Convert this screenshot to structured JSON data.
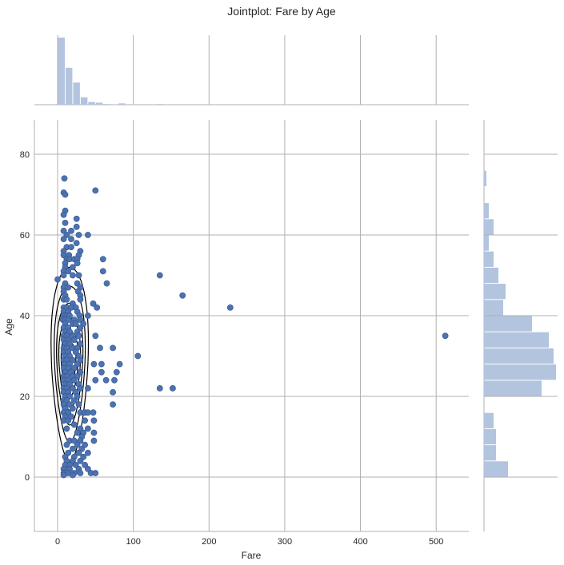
{
  "chart_data": {
    "type": "scatter",
    "title": "Jointplot: Fare by Age",
    "xlabel": "Fare",
    "ylabel": "Age",
    "xlim": [
      -30,
      540
    ],
    "ylim": [
      -13,
      88
    ],
    "xticks": [
      0,
      100,
      200,
      300,
      400,
      500
    ],
    "yticks": [
      0,
      20,
      40,
      60,
      80
    ],
    "grid": true,
    "colors": {
      "points": "#4c72b0",
      "hist": "#b3c4de",
      "contour": "#000000",
      "grid": "#b0b0b0"
    },
    "scatter_points": [
      [
        9,
        74
      ],
      [
        8,
        70.5
      ],
      [
        10,
        70
      ],
      [
        50,
        71
      ],
      [
        10,
        66
      ],
      [
        8,
        65
      ],
      [
        25,
        64
      ],
      [
        10,
        63
      ],
      [
        25,
        62
      ],
      [
        8,
        61
      ],
      [
        18,
        61
      ],
      [
        12,
        60
      ],
      [
        28,
        60
      ],
      [
        40,
        60
      ],
      [
        8,
        59
      ],
      [
        18,
        59
      ],
      [
        25,
        58
      ],
      [
        12,
        57
      ],
      [
        18,
        57
      ],
      [
        8,
        56
      ],
      [
        30,
        56
      ],
      [
        8,
        55
      ],
      [
        15,
        55
      ],
      [
        28,
        55
      ],
      [
        12,
        54
      ],
      [
        16,
        54
      ],
      [
        22,
        54
      ],
      [
        26,
        54
      ],
      [
        60,
        54
      ],
      [
        10,
        53
      ],
      [
        26,
        53
      ],
      [
        10,
        52
      ],
      [
        20,
        52
      ],
      [
        60,
        51
      ],
      [
        8,
        51
      ],
      [
        14,
        51
      ],
      [
        8,
        50
      ],
      [
        20,
        50
      ],
      [
        28,
        50
      ],
      [
        135,
        50
      ],
      [
        0,
        49
      ],
      [
        10,
        48
      ],
      [
        26,
        48
      ],
      [
        65,
        48
      ],
      [
        8,
        47
      ],
      [
        14,
        47
      ],
      [
        30,
        47
      ],
      [
        8,
        46
      ],
      [
        27,
        46
      ],
      [
        10,
        45
      ],
      [
        30,
        45
      ],
      [
        165,
        45
      ],
      [
        8,
        44
      ],
      [
        12,
        44
      ],
      [
        30,
        44
      ],
      [
        20,
        43
      ],
      [
        47,
        43
      ],
      [
        8,
        42
      ],
      [
        12,
        42
      ],
      [
        18,
        42
      ],
      [
        24,
        42
      ],
      [
        52,
        42
      ],
      [
        228,
        42
      ],
      [
        8,
        41
      ],
      [
        14,
        41
      ],
      [
        26,
        41
      ],
      [
        8,
        40
      ],
      [
        12,
        40
      ],
      [
        16,
        40
      ],
      [
        29,
        40
      ],
      [
        40,
        40
      ],
      [
        7,
        39
      ],
      [
        10,
        39
      ],
      [
        14,
        39
      ],
      [
        22,
        39
      ],
      [
        30,
        39
      ],
      [
        10,
        38
      ],
      [
        20,
        38
      ],
      [
        24,
        38
      ],
      [
        34,
        38
      ],
      [
        8,
        37
      ],
      [
        14,
        37
      ],
      [
        30,
        37
      ],
      [
        10,
        36
      ],
      [
        16,
        36
      ],
      [
        26,
        36
      ],
      [
        8,
        35
      ],
      [
        12,
        35
      ],
      [
        20,
        35
      ],
      [
        28,
        35
      ],
      [
        50,
        35
      ],
      [
        512,
        35
      ],
      [
        8,
        34
      ],
      [
        14,
        34
      ],
      [
        22,
        34
      ],
      [
        10,
        33
      ],
      [
        16,
        33
      ],
      [
        30,
        33
      ],
      [
        8,
        32
      ],
      [
        12,
        32
      ],
      [
        20,
        32
      ],
      [
        26,
        32
      ],
      [
        56,
        32
      ],
      [
        73,
        32
      ],
      [
        8,
        31
      ],
      [
        14,
        31
      ],
      [
        24,
        31
      ],
      [
        10,
        30
      ],
      [
        16,
        30
      ],
      [
        28,
        30
      ],
      [
        106,
        30
      ],
      [
        8,
        29
      ],
      [
        12,
        29
      ],
      [
        20,
        29
      ],
      [
        30,
        29
      ],
      [
        10,
        28
      ],
      [
        16,
        28
      ],
      [
        26,
        28
      ],
      [
        48,
        28
      ],
      [
        58,
        28
      ],
      [
        82,
        28
      ],
      [
        8,
        27
      ],
      [
        14,
        27
      ],
      [
        22,
        27
      ],
      [
        10,
        26
      ],
      [
        18,
        26
      ],
      [
        30,
        26
      ],
      [
        58,
        26
      ],
      [
        78,
        26
      ],
      [
        8,
        25
      ],
      [
        12,
        25
      ],
      [
        20,
        25
      ],
      [
        26,
        25
      ],
      [
        8,
        24
      ],
      [
        14,
        24
      ],
      [
        22,
        24
      ],
      [
        50,
        24
      ],
      [
        64,
        24
      ],
      [
        75,
        24
      ],
      [
        10,
        23
      ],
      [
        16,
        23
      ],
      [
        28,
        23
      ],
      [
        8,
        22
      ],
      [
        12,
        22
      ],
      [
        20,
        22
      ],
      [
        30,
        22
      ],
      [
        40,
        22
      ],
      [
        135,
        22
      ],
      [
        152,
        22
      ],
      [
        8,
        21
      ],
      [
        14,
        21
      ],
      [
        24,
        21
      ],
      [
        73,
        21
      ],
      [
        10,
        20
      ],
      [
        16,
        20
      ],
      [
        26,
        20
      ],
      [
        8,
        19
      ],
      [
        12,
        19
      ],
      [
        22,
        19
      ],
      [
        8,
        18
      ],
      [
        16,
        18
      ],
      [
        28,
        18
      ],
      [
        73,
        18
      ],
      [
        10,
        17
      ],
      [
        20,
        17
      ],
      [
        8,
        16
      ],
      [
        14,
        16
      ],
      [
        30,
        16
      ],
      [
        36,
        16
      ],
      [
        40,
        16
      ],
      [
        47,
        16
      ],
      [
        10,
        15
      ],
      [
        18,
        15
      ],
      [
        8,
        14
      ],
      [
        14,
        14
      ],
      [
        36,
        14
      ],
      [
        48,
        14
      ],
      [
        22,
        13
      ],
      [
        12,
        12
      ],
      [
        30,
        12
      ],
      [
        40,
        12
      ],
      [
        26,
        11
      ],
      [
        34,
        11
      ],
      [
        48,
        11
      ],
      [
        32,
        10
      ],
      [
        16,
        9
      ],
      [
        22,
        9
      ],
      [
        30,
        9
      ],
      [
        48,
        9
      ],
      [
        12,
        8
      ],
      [
        26,
        8
      ],
      [
        36,
        8
      ],
      [
        20,
        7
      ],
      [
        32,
        7
      ],
      [
        14,
        6
      ],
      [
        28,
        6
      ],
      [
        40,
        6
      ],
      [
        10,
        5
      ],
      [
        22,
        5
      ],
      [
        34,
        5
      ],
      [
        12,
        4
      ],
      [
        20,
        4
      ],
      [
        30,
        4
      ],
      [
        10,
        3
      ],
      [
        16,
        3
      ],
      [
        24,
        3
      ],
      [
        36,
        3
      ],
      [
        8,
        2
      ],
      [
        16,
        2
      ],
      [
        28,
        2
      ],
      [
        40,
        2
      ],
      [
        8,
        1
      ],
      [
        14,
        1
      ],
      [
        22,
        1
      ],
      [
        30,
        1
      ],
      [
        44,
        1
      ],
      [
        50,
        1
      ],
      [
        8,
        0.5
      ],
      [
        20,
        0.5
      ]
    ],
    "fare_hist": {
      "bin_width": 10,
      "counts": [
        100,
        55,
        33,
        11,
        4,
        3,
        1,
        0,
        2,
        0,
        0,
        0,
        0,
        1
      ]
    },
    "age_hist": {
      "bin_width": 4,
      "start": 0,
      "counts": [
        10,
        5,
        5,
        4,
        0,
        24,
        30,
        29,
        27,
        20,
        8,
        9,
        6,
        4,
        2,
        4,
        2,
        0,
        1
      ]
    }
  }
}
